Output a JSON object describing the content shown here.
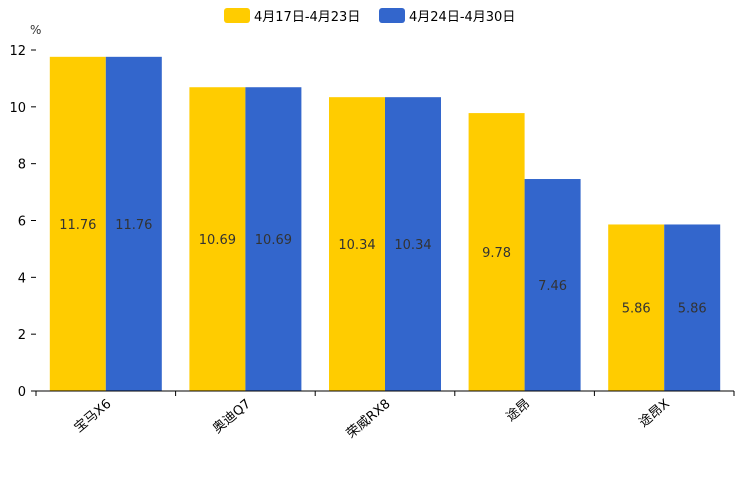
{
  "chart_data": {
    "type": "bar",
    "title": "",
    "ylabel": "%",
    "xlabel": "",
    "ylim": [
      0,
      12
    ],
    "yticks": [
      0,
      2,
      4,
      6,
      8,
      10,
      12
    ],
    "grid": false,
    "legend_position": "top-center",
    "categories": [
      "宝马X6",
      "奥迪Q7",
      "荣威RX8",
      "途昂",
      "途昂X"
    ],
    "series": [
      {
        "name": "4月17日-4月23日",
        "color": "#FFCC00",
        "values": [
          11.76,
          10.69,
          10.34,
          9.78,
          5.86
        ]
      },
      {
        "name": "4月24日-4月30日",
        "color": "#3366CC",
        "values": [
          11.76,
          10.69,
          10.34,
          7.46,
          5.86
        ]
      }
    ]
  }
}
